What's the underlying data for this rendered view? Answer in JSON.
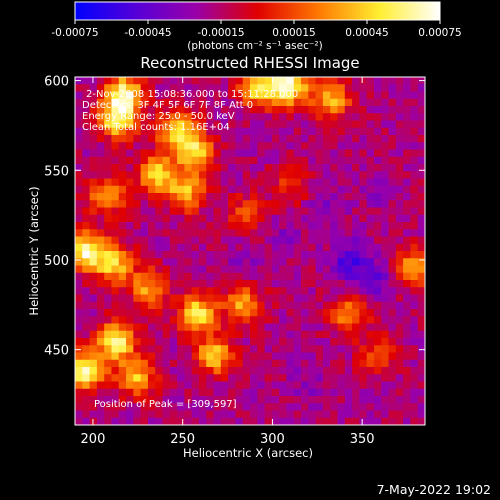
{
  "chart_data": {
    "type": "heatmap",
    "title": "Reconstructed RHESSI Image",
    "xlabel": "Heliocentric X (arcsec)",
    "ylabel": "Heliocentric Y (arcsec)",
    "xlim": [
      190,
      385
    ],
    "ylim": [
      408,
      602
    ],
    "x_ticks": [
      200,
      250,
      300,
      350
    ],
    "y_ticks": [
      450,
      500,
      550,
      600
    ],
    "colorbar": {
      "min": -0.00075,
      "max": 0.00075,
      "tick_values": [
        -0.00075,
        -0.00045,
        -0.00015,
        0.00015,
        0.00045,
        0.00075
      ],
      "tick_labels": [
        "-0.00075",
        "-0.00045",
        "-0.00015",
        "0.00015",
        "0.00045",
        "0.00075"
      ],
      "units_label": "(photons cm⁻² s⁻¹ asec⁻²)",
      "colors": [
        "#0000ff",
        "#5500d8",
        "#9a00a8",
        "#e00000",
        "#ff7800",
        "#ffee30",
        "#ffffff"
      ]
    },
    "annotations": {
      "line1": "2-Nov-2008 15:08:36.000 to 15:11:28.000",
      "line2": "Detectors: 3F 4F 5F 6F 7F 8F  Att 0",
      "line3": "Energy Range: 25.0 - 50.0 keV",
      "line4": "Clean     Total counts: 1.16E+04",
      "peak": "Position of Peak = [309,597]"
    },
    "grid": false,
    "hotspots": [
      {
        "x": 217,
        "y": 592,
        "value": 0.00072
      },
      {
        "x": 214,
        "y": 578,
        "value": 0.0006
      },
      {
        "x": 247,
        "y": 572,
        "value": 0.00058
      },
      {
        "x": 257,
        "y": 560,
        "value": 0.0005
      },
      {
        "x": 236,
        "y": 548,
        "value": 0.00052
      },
      {
        "x": 252,
        "y": 538,
        "value": 0.00042
      },
      {
        "x": 208,
        "y": 536,
        "value": 0.0004
      },
      {
        "x": 196,
        "y": 505,
        "value": 0.00072
      },
      {
        "x": 212,
        "y": 498,
        "value": 0.0005
      },
      {
        "x": 231,
        "y": 484,
        "value": 0.00038
      },
      {
        "x": 258,
        "y": 470,
        "value": 0.0006
      },
      {
        "x": 284,
        "y": 475,
        "value": 0.0004
      },
      {
        "x": 213,
        "y": 455,
        "value": 0.00066
      },
      {
        "x": 196,
        "y": 438,
        "value": 0.00072
      },
      {
        "x": 224,
        "y": 435,
        "value": 0.00045
      },
      {
        "x": 268,
        "y": 447,
        "value": 0.0005
      },
      {
        "x": 292,
        "y": 596,
        "value": 0.00055
      },
      {
        "x": 309,
        "y": 597,
        "value": 0.00075
      },
      {
        "x": 333,
        "y": 590,
        "value": 0.00045
      },
      {
        "x": 285,
        "y": 525,
        "value": 0.0002
      },
      {
        "x": 343,
        "y": 470,
        "value": 0.00035
      },
      {
        "x": 379,
        "y": 496,
        "value": 0.0004
      },
      {
        "x": 359,
        "y": 448,
        "value": 0.00018
      },
      {
        "x": 310,
        "y": 542,
        "value": 0.00012
      },
      {
        "x": 343,
        "y": 500,
        "value": -0.00055
      },
      {
        "x": 356,
        "y": 488,
        "value": -0.0005
      },
      {
        "x": 330,
        "y": 528,
        "value": -0.00035
      },
      {
        "x": 305,
        "y": 512,
        "value": -0.0003
      },
      {
        "x": 282,
        "y": 500,
        "value": -0.0003
      },
      {
        "x": 360,
        "y": 540,
        "value": -0.0003
      },
      {
        "x": 320,
        "y": 430,
        "value": -0.0003
      },
      {
        "x": 250,
        "y": 515,
        "value": -0.00015
      }
    ]
  },
  "footer": {
    "timestamp": "7-May-2022 19:02"
  }
}
